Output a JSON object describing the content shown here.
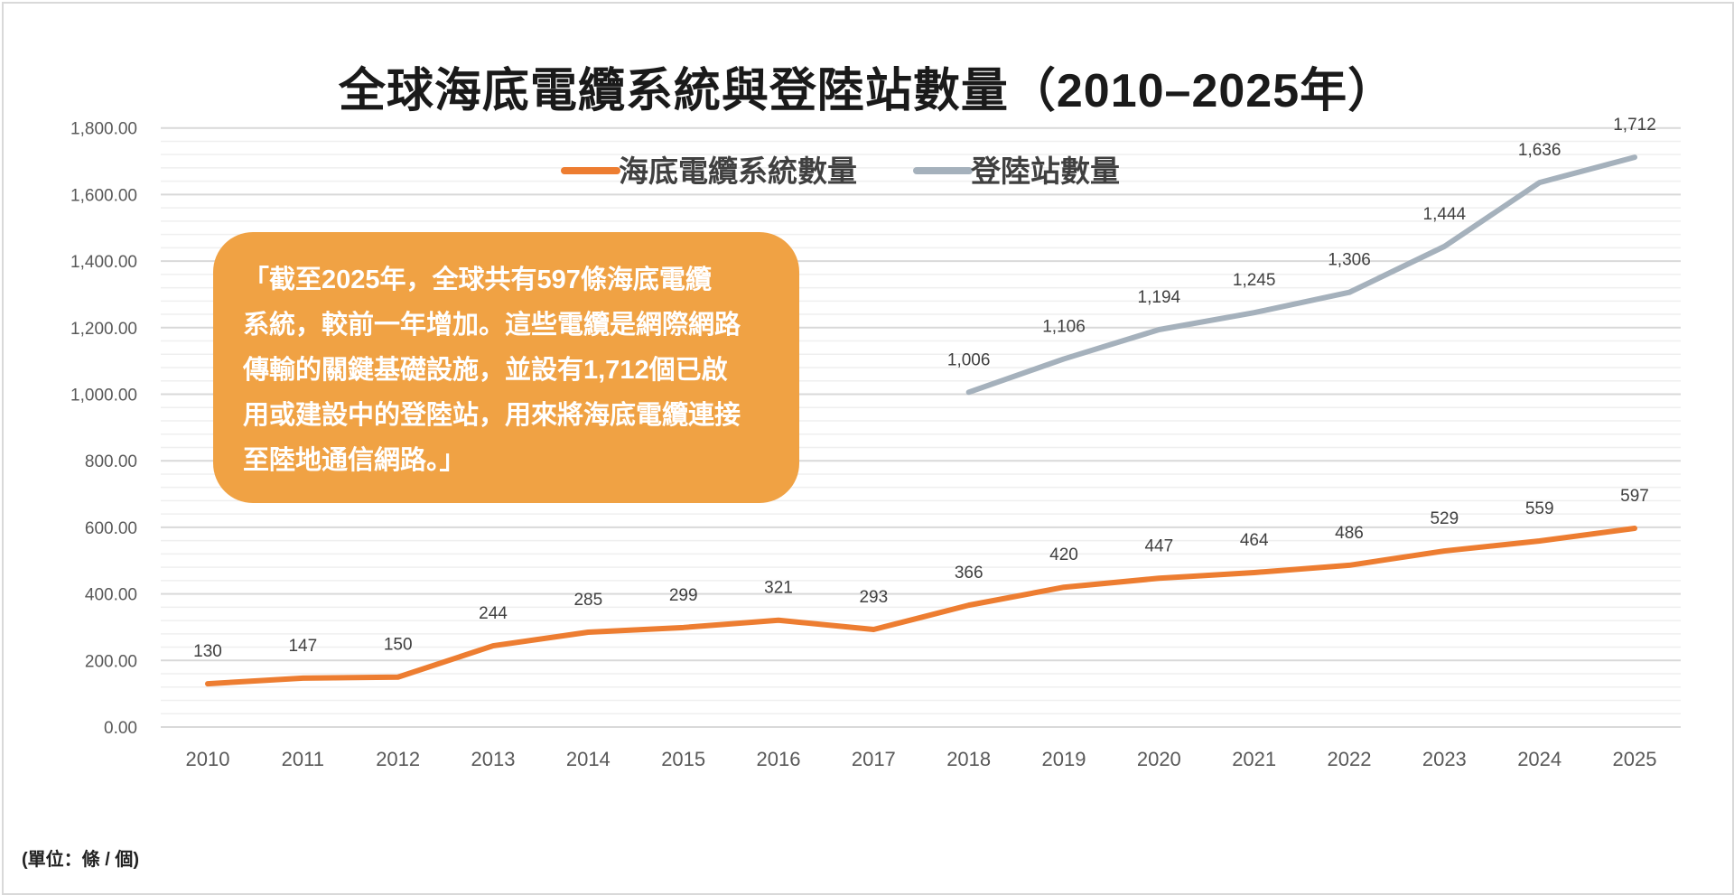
{
  "chart_data": {
    "type": "line",
    "title": "全球海底電纜系統與登陸站數量（2010–2025年）",
    "xlabel": "",
    "ylabel": "",
    "ylim": [
      0,
      1800
    ],
    "yticks": [
      "0.00",
      "200.00",
      "400.00",
      "600.00",
      "800.00",
      "1,000.00",
      "1,200.00",
      "1,400.00",
      "1,600.00",
      "1,800.00"
    ],
    "grid": true,
    "legend_position": "top-center",
    "categories": [
      "2010",
      "2011",
      "2012",
      "2013",
      "2014",
      "2015",
      "2016",
      "2017",
      "2018",
      "2019",
      "2020",
      "2021",
      "2022",
      "2023",
      "2024",
      "2025"
    ],
    "series": [
      {
        "name": "海底電纜系統數量",
        "color": "#ed7d31",
        "values": [
          130,
          147,
          150,
          244,
          285,
          299,
          321,
          293,
          366,
          420,
          447,
          464,
          486,
          529,
          559,
          597
        ],
        "labels": [
          "130",
          "147",
          "150",
          "244",
          "285",
          "299",
          "321",
          "293",
          "366",
          "420",
          "447",
          "464",
          "486",
          "529",
          "559",
          "597"
        ]
      },
      {
        "name": "登陸站數量",
        "color": "#a5b1bc",
        "values": [
          null,
          null,
          null,
          null,
          null,
          null,
          null,
          null,
          1006,
          1106,
          1194,
          1245,
          1306,
          1444,
          1636,
          1712
        ],
        "labels": [
          null,
          null,
          null,
          null,
          null,
          null,
          null,
          null,
          "1,006",
          "1,106",
          "1,194",
          "1,245",
          "1,306",
          "1,444",
          "1,636",
          "1,712"
        ]
      }
    ],
    "annotation": "「截至2025年，全球共有597條海底電纜\n系統，較前一年增加。這些電纜是網際網路\n傳輸的關鍵基礎設施，並設有1,712個已啟\n用或建設中的登陸站，用來將海底電纜連接\n至陸地通信網路。」",
    "annotation_color": "#f0a244",
    "footnote": "(單位：條 / 個)"
  }
}
